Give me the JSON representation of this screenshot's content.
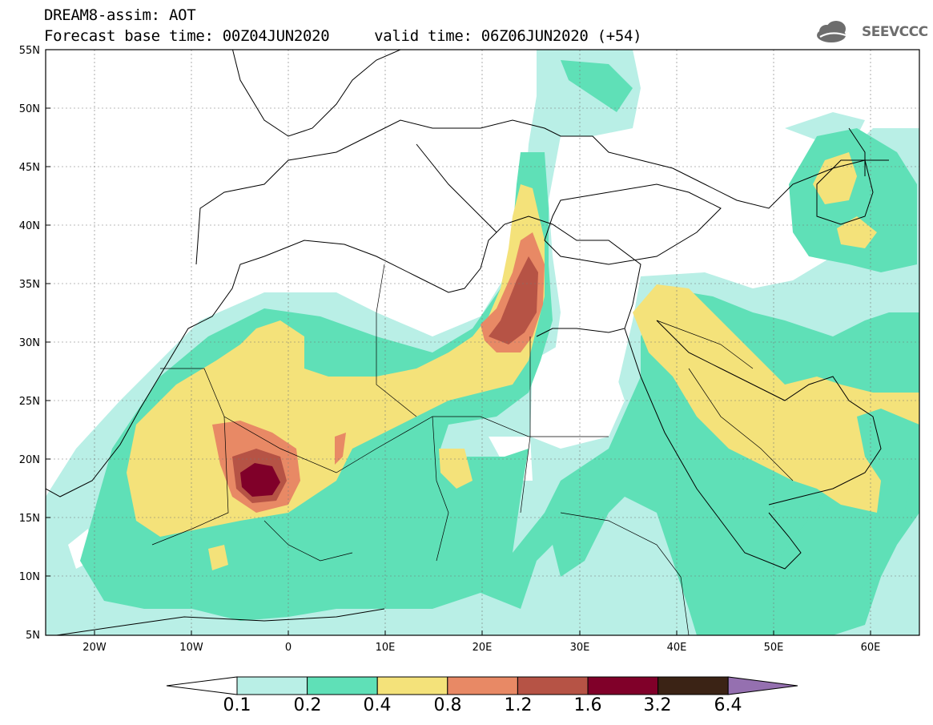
{
  "header": {
    "line1": "DREAM8-assim: AOT",
    "line2": "Forecast base time: 00Z04JUN2020     valid time: 06Z06JUN2020 (+54)"
  },
  "logo": {
    "text": "SEEVCCC",
    "icon": "cloud-icon"
  },
  "map": {
    "lat_labels": [
      "55N",
      "50N",
      "45N",
      "40N",
      "35N",
      "30N",
      "25N",
      "20N",
      "15N",
      "10N",
      "5N"
    ],
    "lon_labels": [
      "20W",
      "10W",
      "0",
      "10E",
      "20E",
      "30E",
      "40E",
      "50E",
      "60E"
    ],
    "lat_range": [
      5,
      55
    ],
    "lon_range": [
      -25,
      65
    ],
    "grid": true
  },
  "colorbar": {
    "labels": [
      "0.1",
      "0.2",
      "0.4",
      "0.8",
      "1.2",
      "1.6",
      "3.2",
      "6.4"
    ],
    "colors": [
      "#ffffff",
      "#b9efe6",
      "#5fe0b7",
      "#f4e27a",
      "#e88965",
      "#b65345",
      "#800029",
      "#3b2315",
      "#9570b0"
    ]
  },
  "legend_colors": {
    "c1": "#b9efe6",
    "c2": "#5fe0b7",
    "c3": "#f4e27a",
    "c4": "#e88965",
    "c5": "#b65345",
    "c6": "#800029"
  }
}
